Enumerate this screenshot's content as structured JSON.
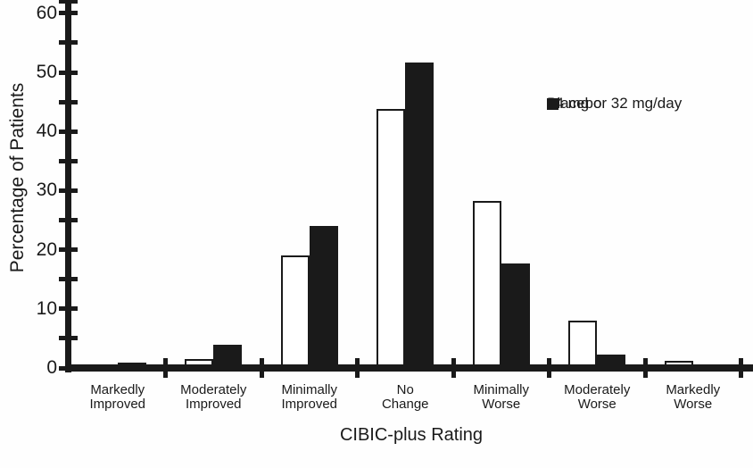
{
  "chart_data": {
    "type": "bar",
    "title": "",
    "xlabel": "CIBIC-plus Rating",
    "ylabel": "Percentage of Patients",
    "ylim": [
      0,
      60
    ],
    "y_major_ticks": [
      0,
      10,
      20,
      30,
      40,
      50,
      60
    ],
    "y_minor_tick_step": 5,
    "grid": false,
    "legend_position": "upper right",
    "categories": [
      [
        "Markedly",
        "Improved"
      ],
      [
        "Moderately",
        "Improved"
      ],
      [
        "Minimally",
        "Improved"
      ],
      [
        "No",
        "Change"
      ],
      [
        "Minimally",
        "Worse"
      ],
      [
        "Moderately",
        "Worse"
      ],
      [
        "Markedly",
        "Worse"
      ]
    ],
    "series": [
      {
        "name": "Placebo",
        "fill": "#ffffff",
        "outline": "#1a1a1a",
        "values": [
          0,
          1.5,
          19,
          43.8,
          28.3,
          8,
          1.2
        ]
      },
      {
        "name": "24 mg or 32 mg/day",
        "fill": "#1a1a1a",
        "outline": "#1a1a1a",
        "values": [
          0.9,
          4,
          24,
          51.7,
          17.7,
          2.3,
          0
        ]
      }
    ]
  },
  "colors": {
    "ink": "#1a1a1a",
    "background": "#fefefe"
  }
}
